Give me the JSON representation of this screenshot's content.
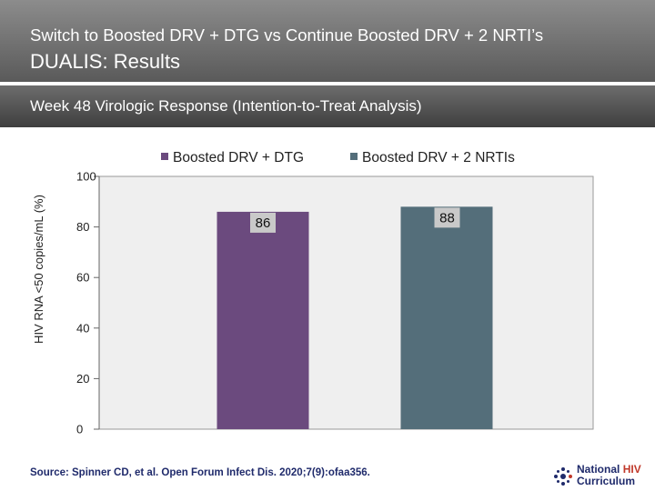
{
  "header": {
    "line1": "Switch to Boosted DRV + DTG vs Continue Boosted DRV + 2 NRTI’s",
    "line2": "DUALIS: Results"
  },
  "subheader": {
    "text": "Week 48 Virologic Response (Intention-to-Treat Analysis)"
  },
  "chart_data": {
    "type": "bar",
    "ylabel": "HIV RNA <50 copies/mL (%)",
    "ylim": [
      0,
      100
    ],
    "yticks": [
      0,
      20,
      40,
      60,
      80,
      100
    ],
    "grid": false,
    "legend_placement": "top",
    "series": [
      {
        "name": "Boosted DRV + DTG",
        "value": 86,
        "label": "86",
        "color": "#6b4a7e"
      },
      {
        "name": "Boosted DRV + 2 NRTIs",
        "value": 88,
        "label": "88",
        "color": "#546e7a"
      }
    ],
    "plot_background": "#efefef",
    "data_label_background": "#c9c9c9"
  },
  "footer": {
    "source": "Source: Spinner CD, et al. Open Forum Infect Dis. 2020;7(9):ofaa356."
  },
  "logo": {
    "line1_a": "National",
    "line1_b": "HIV",
    "line2": "Curriculum",
    "icon": "star-cluster-icon",
    "accent_color": "#c0392b",
    "brand_color": "#1f2a6b"
  }
}
